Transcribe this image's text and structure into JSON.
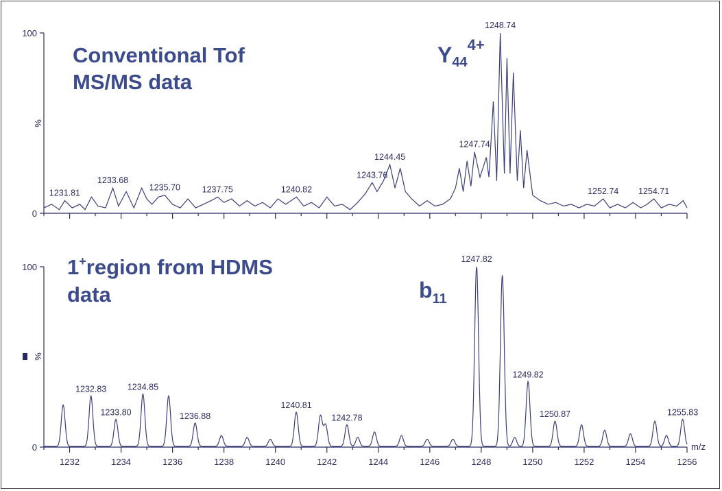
{
  "chart_data": [
    {
      "type": "line",
      "title_lines": [
        "Conventional Tof",
        "MS/MS data"
      ],
      "ion_label": {
        "base": "Y",
        "sub": "44",
        "sup": "4+"
      },
      "ylabel": "%",
      "yticks": [
        "0",
        "100"
      ],
      "xlim": [
        1231,
        1256
      ],
      "ylim": [
        0,
        100
      ],
      "series": [
        {
          "values": [
            [
              1231.0,
              3
            ],
            [
              1231.3,
              5
            ],
            [
              1231.6,
              2
            ],
            [
              1231.81,
              7
            ],
            [
              1232.1,
              3
            ],
            [
              1232.4,
              5
            ],
            [
              1232.6,
              2
            ],
            [
              1232.85,
              9
            ],
            [
              1233.1,
              4
            ],
            [
              1233.4,
              3
            ],
            [
              1233.68,
              14
            ],
            [
              1233.9,
              4
            ],
            [
              1234.2,
              12
            ],
            [
              1234.5,
              3
            ],
            [
              1234.8,
              14
            ],
            [
              1235.0,
              8
            ],
            [
              1235.2,
              5
            ],
            [
              1235.45,
              9
            ],
            [
              1235.7,
              10
            ],
            [
              1236.0,
              5
            ],
            [
              1236.3,
              3
            ],
            [
              1236.6,
              8
            ],
            [
              1236.9,
              3
            ],
            [
              1237.2,
              5
            ],
            [
              1237.5,
              7
            ],
            [
              1237.75,
              9
            ],
            [
              1238.0,
              6
            ],
            [
              1238.3,
              8
            ],
            [
              1238.6,
              4
            ],
            [
              1238.9,
              7
            ],
            [
              1239.2,
              4
            ],
            [
              1239.5,
              6
            ],
            [
              1239.8,
              3
            ],
            [
              1240.1,
              8
            ],
            [
              1240.4,
              5
            ],
            [
              1240.82,
              9
            ],
            [
              1241.1,
              4
            ],
            [
              1241.4,
              6
            ],
            [
              1241.7,
              3
            ],
            [
              1242.0,
              9
            ],
            [
              1242.3,
              4
            ],
            [
              1242.6,
              5
            ],
            [
              1242.9,
              2
            ],
            [
              1243.2,
              6
            ],
            [
              1243.5,
              11
            ],
            [
              1243.76,
              17
            ],
            [
              1243.95,
              12
            ],
            [
              1244.2,
              18
            ],
            [
              1244.45,
              27
            ],
            [
              1244.65,
              14
            ],
            [
              1244.85,
              25
            ],
            [
              1245.05,
              12
            ],
            [
              1245.3,
              8
            ],
            [
              1245.6,
              4
            ],
            [
              1245.9,
              7
            ],
            [
              1246.2,
              4
            ],
            [
              1246.5,
              5
            ],
            [
              1246.8,
              8
            ],
            [
              1247.0,
              14
            ],
            [
              1247.15,
              25
            ],
            [
              1247.3,
              12
            ],
            [
              1247.45,
              29
            ],
            [
              1247.6,
              15
            ],
            [
              1247.74,
              34
            ],
            [
              1247.95,
              20
            ],
            [
              1248.2,
              31
            ],
            [
              1248.3,
              20
            ],
            [
              1248.47,
              62
            ],
            [
              1248.6,
              18
            ],
            [
              1248.74,
              100
            ],
            [
              1248.9,
              22
            ],
            [
              1249.0,
              86
            ],
            [
              1249.12,
              22
            ],
            [
              1249.25,
              78
            ],
            [
              1249.4,
              18
            ],
            [
              1249.52,
              46
            ],
            [
              1249.65,
              14
            ],
            [
              1249.78,
              35
            ],
            [
              1250.0,
              10
            ],
            [
              1250.3,
              7
            ],
            [
              1250.6,
              5
            ],
            [
              1250.9,
              6
            ],
            [
              1251.2,
              4
            ],
            [
              1251.5,
              5
            ],
            [
              1251.8,
              3
            ],
            [
              1252.1,
              5
            ],
            [
              1252.4,
              4
            ],
            [
              1252.74,
              8
            ],
            [
              1253.0,
              3
            ],
            [
              1253.3,
              5
            ],
            [
              1253.6,
              3
            ],
            [
              1253.9,
              6
            ],
            [
              1254.2,
              3
            ],
            [
              1254.45,
              5
            ],
            [
              1254.71,
              8
            ],
            [
              1255.0,
              3
            ],
            [
              1255.3,
              5
            ],
            [
              1255.6,
              4
            ],
            [
              1255.85,
              7
            ],
            [
              1256.0,
              3
            ]
          ]
        }
      ],
      "peak_labels": [
        {
          "text": "1231.81",
          "mz": 1231.81,
          "y": 7
        },
        {
          "text": "1233.68",
          "mz": 1233.68,
          "y": 14
        },
        {
          "text": "1235.70",
          "mz": 1235.7,
          "y": 10
        },
        {
          "text": "1237.75",
          "mz": 1237.75,
          "y": 9
        },
        {
          "text": "1240.82",
          "mz": 1240.82,
          "y": 9
        },
        {
          "text": "1243.76",
          "mz": 1243.76,
          "y": 17
        },
        {
          "text": "1244.45",
          "mz": 1244.45,
          "y": 27
        },
        {
          "text": "1247.74",
          "mz": 1247.74,
          "y": 34
        },
        {
          "text": "1248.74",
          "mz": 1248.74,
          "y": 100
        },
        {
          "text": "1252.74",
          "mz": 1252.74,
          "y": 8
        },
        {
          "text": "1254.71",
          "mz": 1254.71,
          "y": 8
        }
      ]
    },
    {
      "type": "line",
      "title_lines": [
        "1+region from HDMS",
        "data"
      ],
      "title_sup": "+",
      "ion_label": {
        "base": "b",
        "sub": "11",
        "sup": ""
      },
      "ylabel": "%",
      "yticks": [
        "0",
        "100"
      ],
      "xlabel": "m/z",
      "xticks": [
        "1232",
        "1234",
        "1236",
        "1238",
        "1240",
        "1242",
        "1244",
        "1246",
        "1248",
        "1250",
        "1252",
        "1254",
        "1256"
      ],
      "xlim": [
        1231,
        1256
      ],
      "ylim": [
        0,
        100
      ],
      "peaks": [
        [
          1231.75,
          23
        ],
        [
          1232.83,
          28
        ],
        [
          1233.8,
          15
        ],
        [
          1234.85,
          29
        ],
        [
          1235.85,
          28
        ],
        [
          1236.88,
          13
        ],
        [
          1237.9,
          6
        ],
        [
          1238.9,
          5
        ],
        [
          1239.8,
          4
        ],
        [
          1240.81,
          19
        ],
        [
          1241.75,
          17
        ],
        [
          1241.95,
          12
        ],
        [
          1242.78,
          12
        ],
        [
          1243.2,
          5
        ],
        [
          1243.85,
          8
        ],
        [
          1244.9,
          6
        ],
        [
          1245.9,
          4
        ],
        [
          1246.9,
          4
        ],
        [
          1247.82,
          100
        ],
        [
          1248.82,
          95
        ],
        [
          1249.3,
          5
        ],
        [
          1249.82,
          36
        ],
        [
          1250.87,
          14
        ],
        [
          1251.9,
          12
        ],
        [
          1252.8,
          9
        ],
        [
          1253.8,
          7
        ],
        [
          1254.75,
          14
        ],
        [
          1255.2,
          6
        ],
        [
          1255.83,
          15
        ]
      ],
      "peak_labels": [
        {
          "text": "1232.83",
          "mz": 1232.83,
          "y": 28
        },
        {
          "text": "1233.80",
          "mz": 1233.8,
          "y": 15
        },
        {
          "text": "1234.85",
          "mz": 1234.85,
          "y": 29
        },
        {
          "text": "1236.88",
          "mz": 1236.88,
          "y": 13
        },
        {
          "text": "1240.81",
          "mz": 1240.81,
          "y": 19
        },
        {
          "text": "1242.78",
          "mz": 1242.78,
          "y": 12
        },
        {
          "text": "1247.82",
          "mz": 1247.82,
          "y": 100
        },
        {
          "text": "1249.82",
          "mz": 1249.82,
          "y": 36
        },
        {
          "text": "1250.87",
          "mz": 1250.87,
          "y": 14
        },
        {
          "text": "1255.83",
          "mz": 1255.83,
          "y": 15
        }
      ]
    }
  ]
}
